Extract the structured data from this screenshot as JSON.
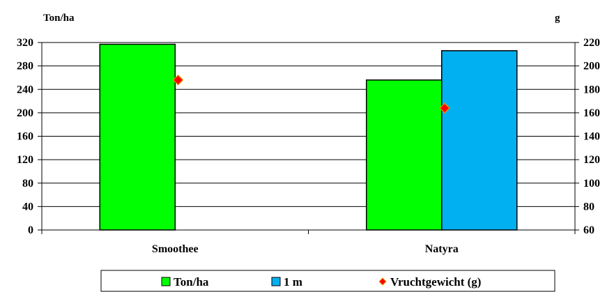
{
  "chart_data": {
    "type": "bar",
    "categories": [
      "Smoothee",
      "Natyra"
    ],
    "series": [
      {
        "name": "Ton/ha",
        "kind": "bar",
        "axis": "left",
        "color": "#00ff00",
        "values": [
          317,
          256
        ]
      },
      {
        "name": "1 m",
        "kind": "bar",
        "axis": "left",
        "color": "#00b0f0",
        "values": [
          null,
          306
        ]
      },
      {
        "name": "Vruchtgewicht (g)",
        "kind": "scatter",
        "marker": "diamond",
        "axis": "right",
        "color": "#ff0000",
        "values": [
          188,
          164
        ]
      }
    ],
    "left_axis": {
      "title": "Ton/ha",
      "ylim": [
        0,
        320
      ],
      "ticks": [
        "0",
        "40",
        "80",
        "120",
        "160",
        "200",
        "240",
        "280",
        "320"
      ]
    },
    "right_axis": {
      "title": "g",
      "ylim": [
        60,
        220
      ],
      "ticks": [
        "60",
        "80",
        "100",
        "120",
        "140",
        "160",
        "180",
        "200",
        "220"
      ]
    },
    "grid": true,
    "legend_position": "bottom"
  }
}
